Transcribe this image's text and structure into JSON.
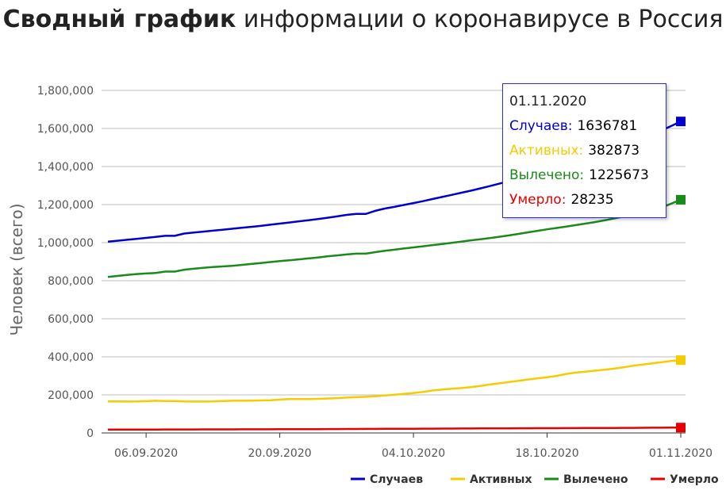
{
  "title": {
    "bold": "Сводный график",
    "rest": " информации о коронавирусе в Россия"
  },
  "chart_data": {
    "type": "line",
    "ylabel": "Человек (всего)",
    "ylim": [
      0,
      1800000
    ],
    "yticks": [
      "1,800,000",
      "1,600,000",
      "1,400,000",
      "1,200,000",
      "1,000,000",
      "800,000",
      "600,000",
      "400,000",
      "200,000",
      "0"
    ],
    "ytick_values": [
      1800000,
      1600000,
      1400000,
      1200000,
      1000000,
      800000,
      600000,
      400000,
      200000,
      0
    ],
    "xticks": [
      "06.09.2020",
      "20.09.2020",
      "04.10.2020",
      "18.10.2020",
      "01.11.2020"
    ],
    "x": [
      "02.09",
      "03.09",
      "04.09",
      "05.09",
      "06.09",
      "07.09",
      "08.09",
      "09.09",
      "10.09",
      "11.09",
      "12.09",
      "13.09",
      "14.09",
      "15.09",
      "16.09",
      "17.09",
      "18.09",
      "19.09",
      "20.09",
      "21.09",
      "22.09",
      "23.09",
      "24.09",
      "25.09",
      "26.09",
      "27.09",
      "28.09",
      "29.09",
      "30.09",
      "01.10",
      "02.10",
      "03.10",
      "04.10",
      "05.10",
      "06.10",
      "07.10",
      "08.10",
      "09.10",
      "10.10",
      "11.10",
      "12.10",
      "13.10",
      "14.10",
      "15.10",
      "16.10",
      "17.10",
      "18.10",
      "19.10",
      "20.10",
      "21.10",
      "22.10",
      "23.10",
      "24.10",
      "25.10",
      "26.10",
      "27.10",
      "28.10",
      "29.10",
      "30.10",
      "31.10",
      "01.11"
    ],
    "series": [
      {
        "name": "Случаев",
        "color": "#0000cc",
        "values": [
          1005000,
          1010000,
          1015000,
          1020000,
          1025000,
          1030000,
          1036000,
          1036000,
          1048000,
          1053000,
          1058000,
          1063000,
          1068000,
          1073000,
          1078000,
          1083000,
          1088000,
          1094000,
          1100000,
          1106000,
          1112000,
          1118000,
          1124000,
          1131000,
          1138000,
          1146000,
          1151000,
          1151000,
          1167000,
          1179000,
          1188000,
          1198000,
          1208000,
          1218000,
          1229000,
          1240000,
          1251000,
          1262000,
          1273000,
          1285000,
          1297000,
          1310000,
          1323000,
          1337000,
          1350000,
          1365000,
          1380000,
          1395000,
          1410000,
          1425000,
          1440000,
          1457000,
          1474000,
          1492000,
          1510000,
          1528000,
          1547000,
          1567000,
          1590000,
          1613000,
          1636781
        ]
      },
      {
        "name": "Активных",
        "color": "#f5cc00",
        "values": [
          166000,
          165500,
          165000,
          165500,
          167000,
          169000,
          168000,
          168000,
          166000,
          165000,
          165000,
          166000,
          168000,
          169000,
          169000,
          170000,
          171000,
          172000,
          175000,
          178000,
          178000,
          178000,
          179000,
          181000,
          183000,
          186000,
          188000,
          190000,
          193000,
          197000,
          201000,
          205000,
          210000,
          216000,
          223000,
          228000,
          232000,
          236000,
          241000,
          247000,
          254000,
          261000,
          268000,
          274000,
          281000,
          287000,
          293000,
          300000,
          310000,
          317000,
          322000,
          327000,
          332000,
          338000,
          345000,
          353000,
          359000,
          366000,
          372000,
          378000,
          382873
        ]
      },
      {
        "name": "Вылечено",
        "color": "#1a8a1a",
        "values": [
          820000,
          825000,
          830000,
          835000,
          838000,
          841000,
          848000,
          848000,
          858000,
          863000,
          868000,
          872000,
          875000,
          878000,
          883000,
          888000,
          893000,
          898000,
          903000,
          907000,
          912000,
          917000,
          922000,
          928000,
          933000,
          938000,
          942000,
          942000,
          950000,
          957000,
          963000,
          969000,
          975000,
          981000,
          987000,
          993000,
          999000,
          1005000,
          1012000,
          1018000,
          1024000,
          1031000,
          1038000,
          1046000,
          1054000,
          1062000,
          1070000,
          1077000,
          1084000,
          1092000,
          1100000,
          1108000,
          1117000,
          1127000,
          1137000,
          1147000,
          1158000,
          1170000,
          1185000,
          1205000,
          1225673
        ]
      },
      {
        "name": "Умерло",
        "color": "#e60000",
        "values": [
          17600,
          17700,
          17800,
          17900,
          18000,
          18100,
          18200,
          18300,
          18400,
          18500,
          18600,
          18700,
          18800,
          18900,
          19000,
          19100,
          19200,
          19300,
          19400,
          19600,
          19800,
          20000,
          20200,
          20400,
          20600,
          20800,
          21000,
          21200,
          21400,
          21600,
          21800,
          22000,
          22200,
          22400,
          22600,
          22800,
          23000,
          23200,
          23400,
          23600,
          23800,
          24000,
          24200,
          24400,
          24600,
          24800,
          25000,
          25200,
          25400,
          25600,
          25800,
          26000,
          26200,
          26400,
          26600,
          26800,
          27000,
          27300,
          27600,
          27900,
          28235
        ]
      }
    ],
    "grid": true,
    "legend_position": "bottom-right"
  },
  "tooltip": {
    "date": "01.11.2020",
    "rows": [
      {
        "label": "Случаев:",
        "value": "1636781",
        "color": "#0000cc"
      },
      {
        "label": "Активных:",
        "value": "382873",
        "color": "#f5cc00"
      },
      {
        "label": "Вылечено:",
        "value": "1225673",
        "color": "#1a8a1a"
      },
      {
        "label": "Умерло:",
        "value": "28235",
        "color": "#e60000"
      }
    ]
  }
}
